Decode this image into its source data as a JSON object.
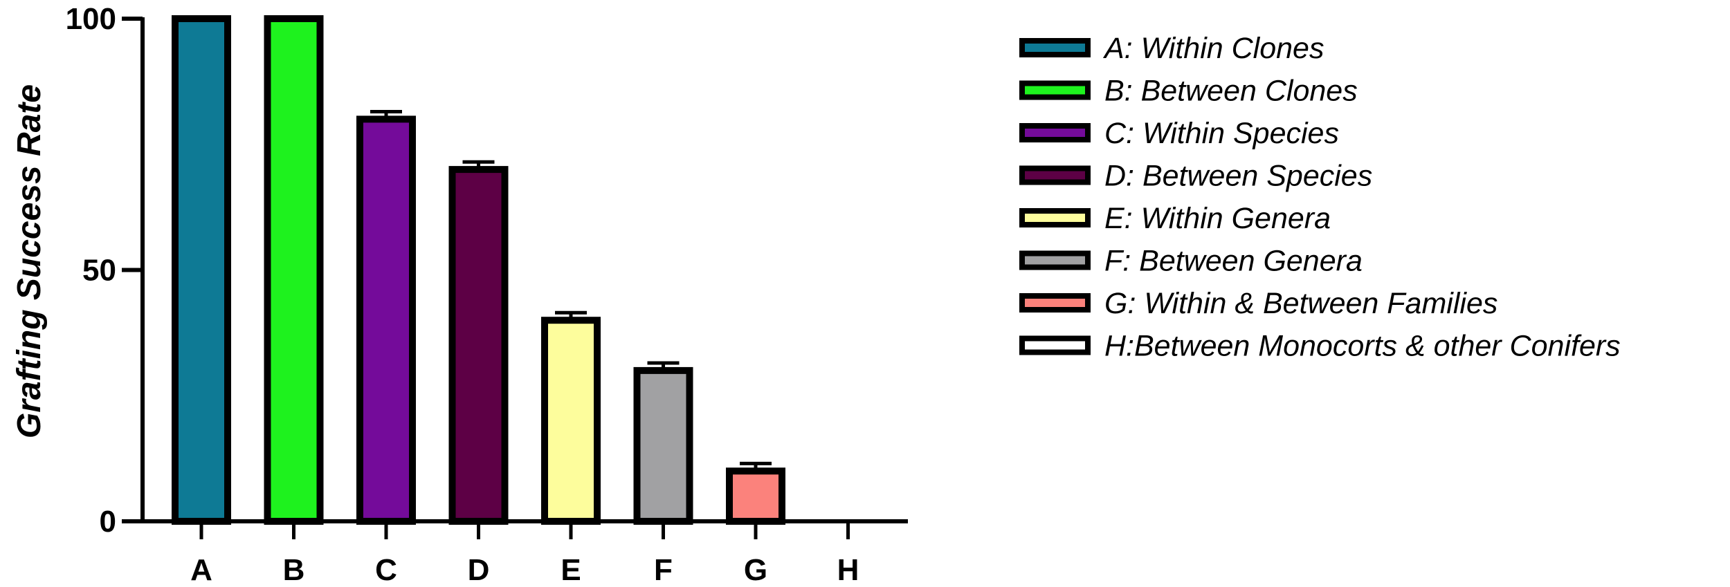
{
  "chart_data": {
    "type": "bar",
    "title": "",
    "xlabel": "",
    "ylabel": "Grafting Success Rate",
    "ylim": [
      0,
      100
    ],
    "yticks": [
      0,
      50,
      100
    ],
    "grid": false,
    "legend_position": "right",
    "categories": [
      "A",
      "B",
      "C",
      "D",
      "E",
      "F",
      "G",
      "H"
    ],
    "values": [
      100,
      100,
      80,
      70,
      40,
      30,
      10,
      0
    ],
    "errors": [
      0,
      0,
      1.5,
      1.5,
      1.5,
      1.5,
      1.5,
      0
    ],
    "colors": [
      "#0e7a95",
      "#1ef21e",
      "#740b9a",
      "#5d0045",
      "#fdfd9c",
      "#a1a1a3",
      "#fb827c",
      "#ffffff"
    ],
    "legend": [
      "A: Within Clones",
      "B: Between Clones",
      "C: Within Species",
      "D: Between Species",
      "E: Within Genera",
      "F: Between Genera",
      "G: Within & Between Families",
      "H:Between Monocorts & other Conifers"
    ]
  }
}
